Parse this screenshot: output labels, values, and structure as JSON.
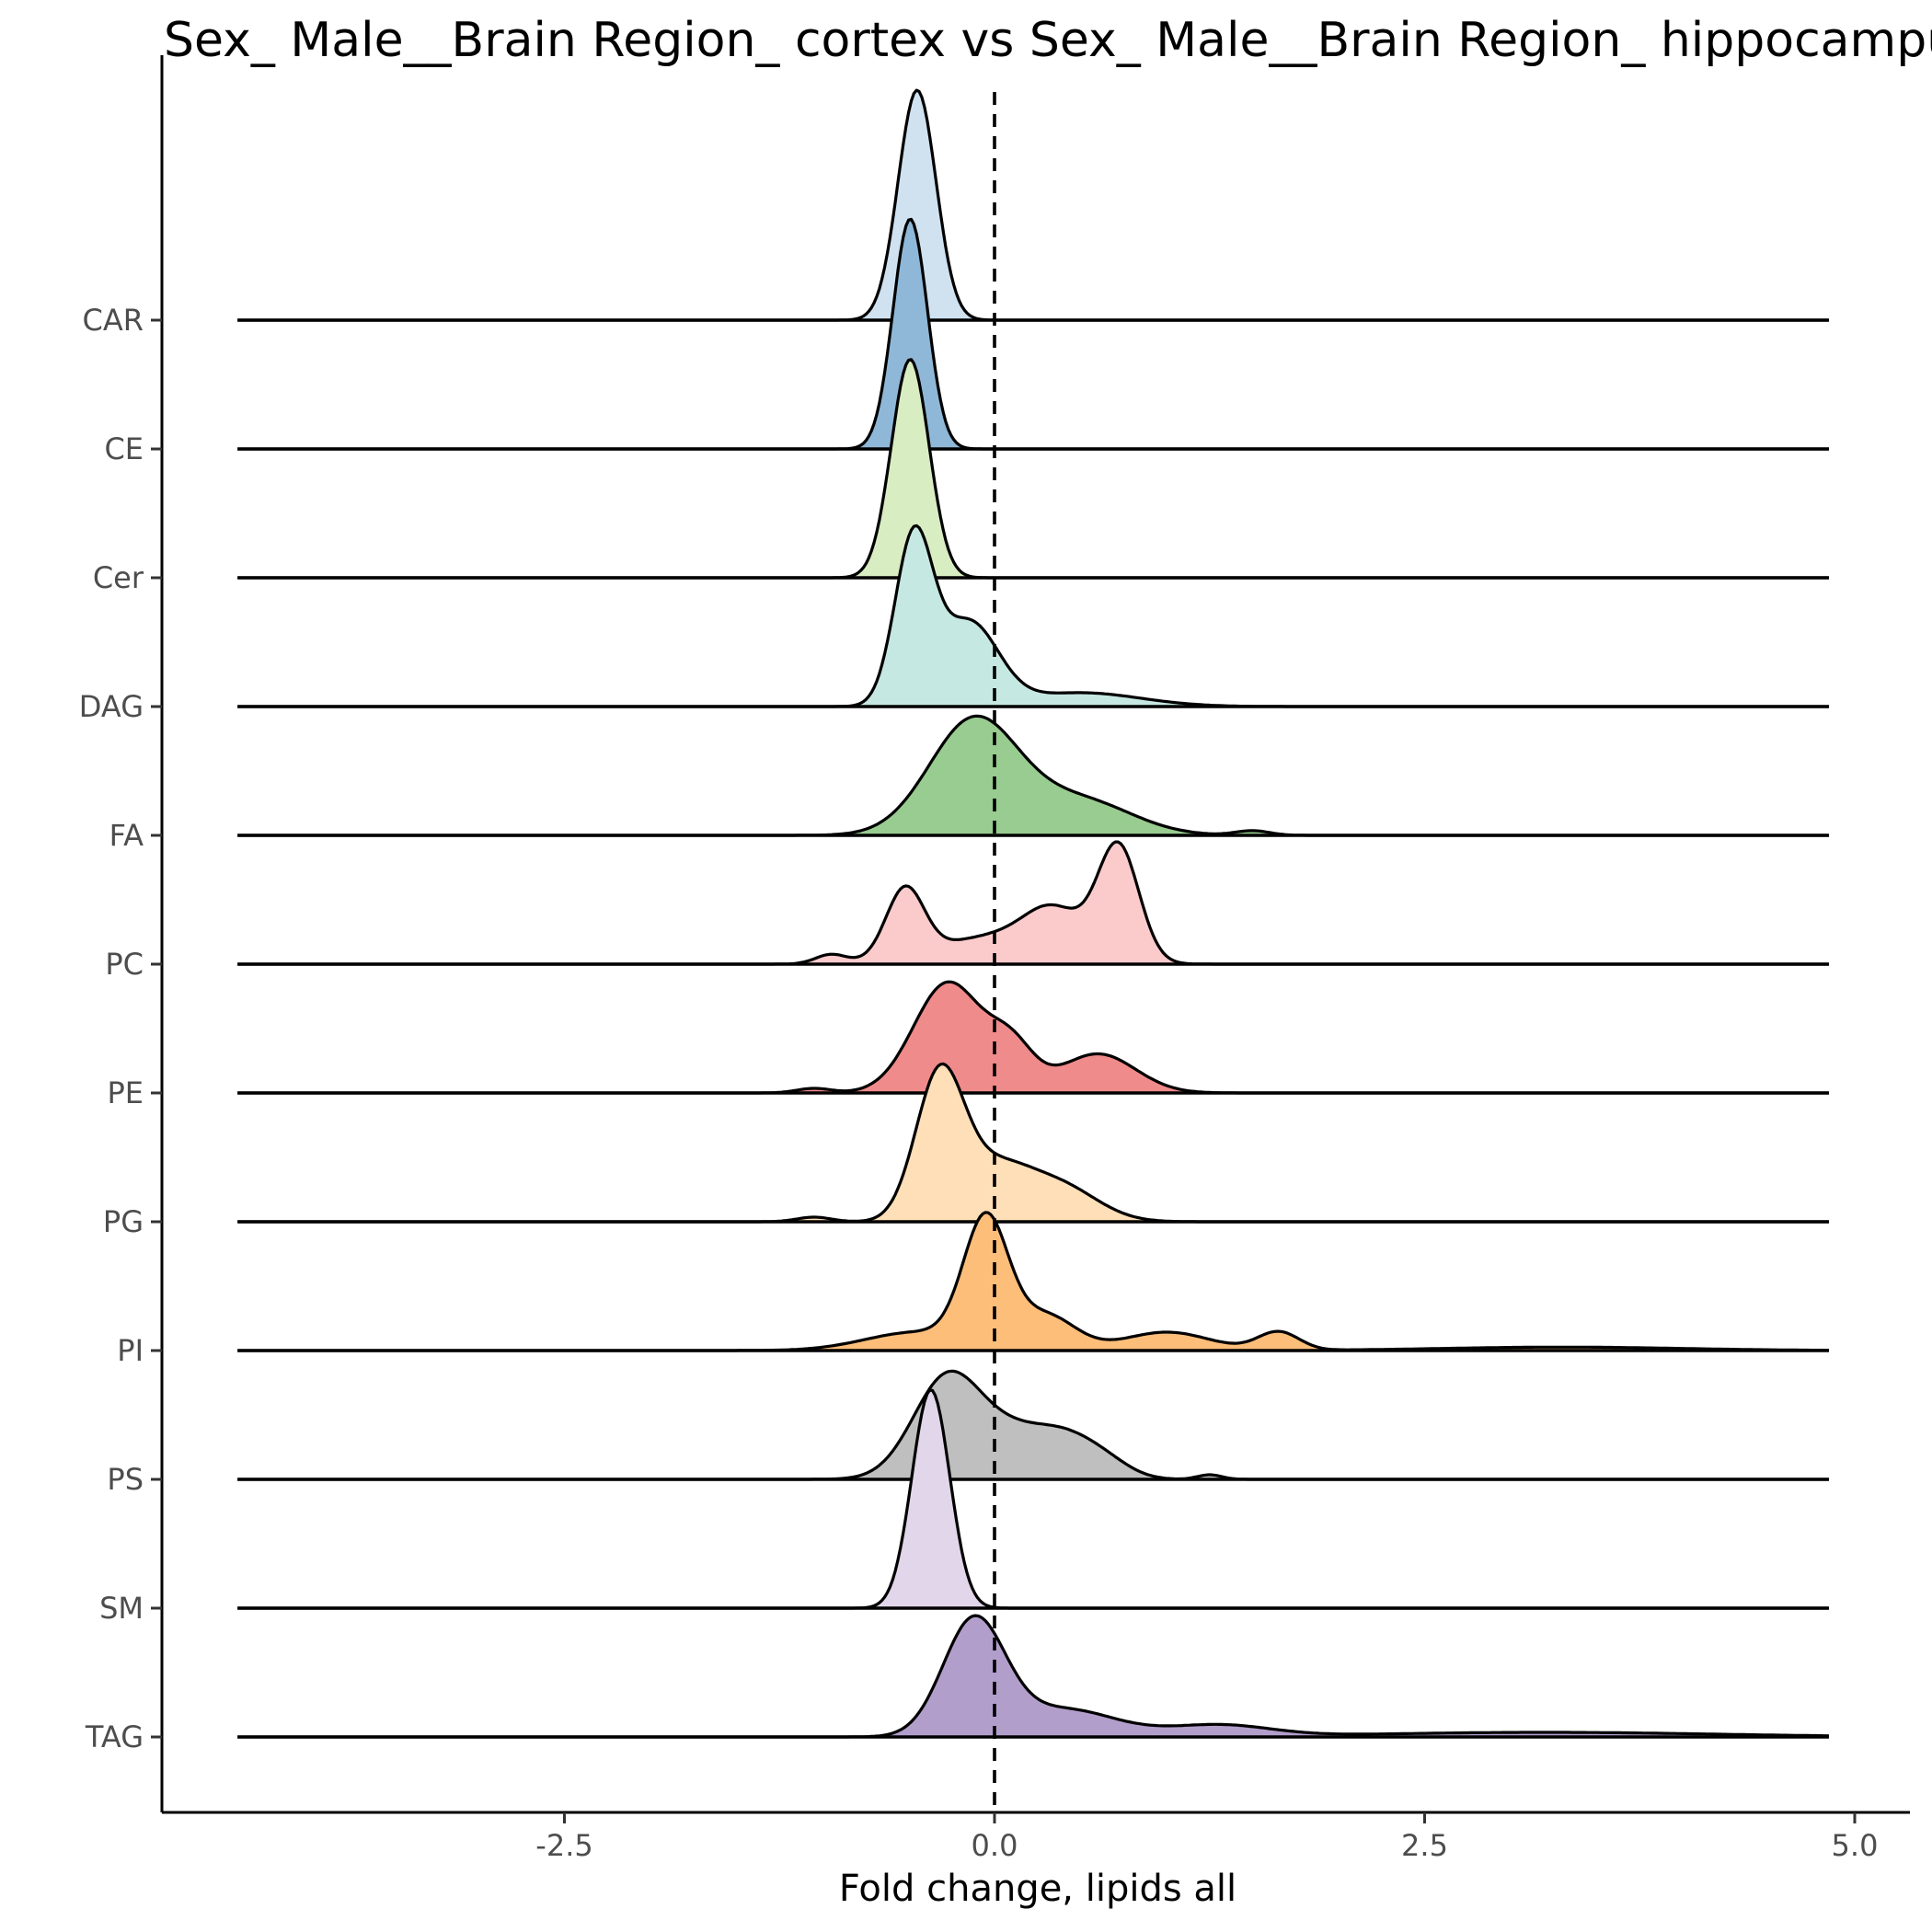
{
  "chart_data": {
    "type": "ridgeline",
    "title": "Sex_ Male__Brain Region_ cortex vs Sex_ Male__Brain Region_ hippocampus",
    "xlabel": "Fold change, lipids all",
    "ylabel": "",
    "xlim": [
      -5.0,
      5.1
    ],
    "x_range_drawn": [
      -4.4,
      4.85
    ],
    "x_ticks": [
      -2.5,
      0.0,
      2.5,
      5.0
    ],
    "x_tick_labels": [
      "-2.5",
      "0.0",
      "2.5",
      "5.0"
    ],
    "reference_line": 0.0,
    "grid": false,
    "legend": "none",
    "categories": [
      "CAR",
      "CE",
      "Cer",
      "DAG",
      "FA",
      "PC",
      "PE",
      "PG",
      "PI",
      "PS",
      "SM",
      "TAG"
    ],
    "series": [
      {
        "category": "CAR",
        "color": "#d0e2f0",
        "components": [
          {
            "mu": -0.45,
            "sigma": 0.11,
            "amp": 1.0
          }
        ]
      },
      {
        "category": "CE",
        "color": "#8fb8d8",
        "components": [
          {
            "mu": -0.49,
            "sigma": 0.1,
            "amp": 1.0
          }
        ]
      },
      {
        "category": "Cer",
        "color": "#d9edc3",
        "components": [
          {
            "mu": -0.49,
            "sigma": 0.11,
            "amp": 0.95
          }
        ]
      },
      {
        "category": "DAG",
        "color": "#c6e8e2",
        "components": [
          {
            "mu": -0.47,
            "sigma": 0.11,
            "amp": 0.72
          },
          {
            "mu": -0.15,
            "sigma": 0.17,
            "amp": 0.36
          },
          {
            "mu": 0.5,
            "sigma": 0.35,
            "amp": 0.06
          }
        ]
      },
      {
        "category": "FA",
        "color": "#99cc90",
        "components": [
          {
            "mu": -0.12,
            "sigma": 0.26,
            "amp": 0.5
          },
          {
            "mu": 0.5,
            "sigma": 0.3,
            "amp": 0.15
          },
          {
            "mu": 1.5,
            "sigma": 0.1,
            "amp": 0.02
          }
        ]
      },
      {
        "category": "PC",
        "color": "#fbcbcc",
        "components": [
          {
            "mu": -0.52,
            "sigma": 0.11,
            "amp": 0.3
          },
          {
            "mu": 0.72,
            "sigma": 0.12,
            "amp": 0.5
          },
          {
            "mu": 0.0,
            "sigma": 0.35,
            "amp": 0.12
          },
          {
            "mu": 0.35,
            "sigma": 0.17,
            "amp": 0.18
          },
          {
            "mu": -0.95,
            "sigma": 0.09,
            "amp": 0.04
          }
        ]
      },
      {
        "category": "PE",
        "color": "#f08b8b",
        "components": [
          {
            "mu": -0.27,
            "sigma": 0.2,
            "amp": 0.48
          },
          {
            "mu": 0.1,
            "sigma": 0.13,
            "amp": 0.18
          },
          {
            "mu": 0.6,
            "sigma": 0.22,
            "amp": 0.17
          },
          {
            "mu": -1.05,
            "sigma": 0.1,
            "amp": 0.02
          }
        ]
      },
      {
        "category": "PG",
        "color": "#fedfb7",
        "components": [
          {
            "mu": -0.32,
            "sigma": 0.14,
            "amp": 0.62
          },
          {
            "mu": 0.0,
            "sigma": 0.2,
            "amp": 0.22
          },
          {
            "mu": 0.38,
            "sigma": 0.22,
            "amp": 0.15
          },
          {
            "mu": -1.05,
            "sigma": 0.1,
            "amp": 0.02
          }
        ]
      },
      {
        "category": "PI",
        "color": "#fdbe7a",
        "components": [
          {
            "mu": -0.05,
            "sigma": 0.13,
            "amp": 0.55
          },
          {
            "mu": 0.3,
            "sigma": 0.17,
            "amp": 0.15
          },
          {
            "mu": -0.45,
            "sigma": 0.3,
            "amp": 0.08
          },
          {
            "mu": 1.0,
            "sigma": 0.25,
            "amp": 0.08
          },
          {
            "mu": 1.65,
            "sigma": 0.12,
            "amp": 0.08
          },
          {
            "mu": 3.3,
            "sigma": 0.7,
            "amp": 0.015
          }
        ]
      },
      {
        "category": "PS",
        "color": "#bfbfbf",
        "components": [
          {
            "mu": -0.27,
            "sigma": 0.2,
            "amp": 0.45
          },
          {
            "mu": 0.1,
            "sigma": 0.18,
            "amp": 0.15
          },
          {
            "mu": 0.4,
            "sigma": 0.18,
            "amp": 0.17
          },
          {
            "mu": 0.65,
            "sigma": 0.15,
            "amp": 0.06
          },
          {
            "mu": 1.25,
            "sigma": 0.07,
            "amp": 0.02
          }
        ]
      },
      {
        "category": "SM",
        "color": "#e2d6ea",
        "components": [
          {
            "mu": -0.37,
            "sigma": 0.11,
            "amp": 0.95
          }
        ]
      },
      {
        "category": "TAG",
        "color": "#b29ecb",
        "components": [
          {
            "mu": -0.12,
            "sigma": 0.18,
            "amp": 0.5
          },
          {
            "mu": 0.4,
            "sigma": 0.3,
            "amp": 0.12
          },
          {
            "mu": 1.3,
            "sigma": 0.3,
            "amp": 0.05
          },
          {
            "mu": 3.2,
            "sigma": 1.0,
            "amp": 0.02
          }
        ]
      }
    ]
  }
}
